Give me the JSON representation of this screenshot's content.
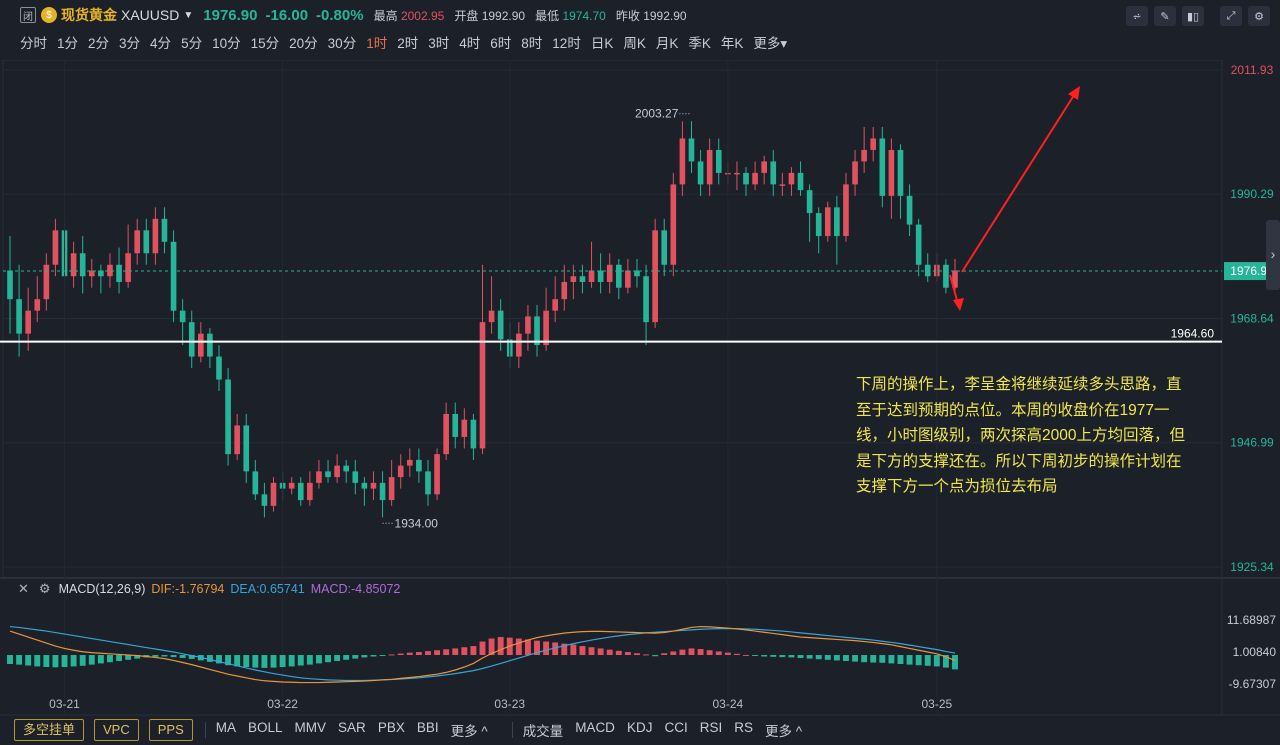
{
  "header": {
    "window_icon": "闭",
    "symbol_badge_icon": "coin-icon",
    "symbol_name": "现货黄金",
    "symbol_code": "XAUUSD",
    "last_price": "1976.90",
    "change": "-16.00",
    "change_pct": "-0.80%",
    "high_label": "最高",
    "high_value": "2002.95",
    "open_label": "开盘",
    "open_value": "1992.90",
    "low_label": "最低",
    "low_value": "1974.70",
    "prev_close_label": "昨收",
    "prev_close_value": "1992.90",
    "tools": [
      "line-tool-icon",
      "pen-icon",
      "candle-style-icon",
      "fullscreen-icon",
      "settings-icon"
    ]
  },
  "periods": [
    "分时",
    "1分",
    "2分",
    "3分",
    "4分",
    "5分",
    "10分",
    "15分",
    "20分",
    "30分",
    "1时",
    "2时",
    "3时",
    "4时",
    "6时",
    "8时",
    "12时",
    "日K",
    "周K",
    "月K",
    "季K",
    "年K",
    "更多▾"
  ],
  "active_period": "1时",
  "chart_data": {
    "type": "candlestick",
    "price_axis": {
      "ticks": [
        "2011.93",
        "1990.29",
        "1968.64",
        "1946.99",
        "1925.34"
      ],
      "min": 1925.34,
      "max": 2011.93
    },
    "current_price_label": "1976.90",
    "horizontal_line": {
      "value": 1964.6,
      "label": "1964.60"
    },
    "annotations": {
      "high": "2003.27",
      "low": "1934.00"
    },
    "date_labels": [
      "03-21",
      "03-22",
      "03-23",
      "03-24",
      "03-25"
    ],
    "candles": [
      [
        1977,
        1972,
        1983,
        1966
      ],
      [
        1972,
        1966,
        1978,
        1962
      ],
      [
        1966,
        1970,
        1974,
        1963
      ],
      [
        1970,
        1972,
        1976,
        1968
      ],
      [
        1972,
        1978,
        1980,
        1970
      ],
      [
        1978,
        1984,
        1986,
        1976
      ],
      [
        1984,
        1976,
        1987,
        1974
      ],
      [
        1976,
        1980,
        1982,
        1974
      ],
      [
        1980,
        1976,
        1983,
        1973
      ],
      [
        1976,
        1977,
        1979,
        1974
      ],
      [
        1977,
        1976,
        1978,
        1973
      ],
      [
        1976,
        1978,
        1980,
        1974
      ],
      [
        1978,
        1975,
        1981,
        1973
      ],
      [
        1975,
        1980,
        1985,
        1974
      ],
      [
        1980,
        1984,
        1986,
        1978
      ],
      [
        1984,
        1980,
        1986,
        1978
      ],
      [
        1980,
        1986,
        1988,
        1978
      ],
      [
        1986,
        1982,
        1988,
        1980
      ],
      [
        1982,
        1970,
        1984,
        1968
      ],
      [
        1970,
        1968,
        1972,
        1964
      ],
      [
        1968,
        1962,
        1970,
        1960
      ],
      [
        1962,
        1966,
        1968,
        1961
      ],
      [
        1966,
        1962,
        1967,
        1960
      ],
      [
        1962,
        1958,
        1964,
        1956
      ],
      [
        1958,
        1945,
        1960,
        1943
      ],
      [
        1945,
        1950,
        1952,
        1944
      ],
      [
        1950,
        1942,
        1952,
        1940
      ],
      [
        1942,
        1938,
        1944,
        1937
      ],
      [
        1938,
        1936,
        1940,
        1934
      ],
      [
        1936,
        1940,
        1941,
        1935
      ],
      [
        1940,
        1939,
        1942,
        1937
      ],
      [
        1939,
        1940,
        1941,
        1938
      ],
      [
        1940,
        1937,
        1941,
        1936
      ],
      [
        1937,
        1940,
        1942,
        1936
      ],
      [
        1940,
        1942,
        1944,
        1939
      ],
      [
        1942,
        1941,
        1944,
        1940
      ],
      [
        1941,
        1943,
        1945,
        1940
      ],
      [
        1943,
        1942,
        1944,
        1940
      ],
      [
        1942,
        1940,
        1944,
        1938
      ],
      [
        1940,
        1939,
        1941,
        1936
      ],
      [
        1939,
        1940,
        1942,
        1937
      ],
      [
        1940,
        1937,
        1942,
        1934
      ],
      [
        1937,
        1941,
        1944,
        1936
      ],
      [
        1941,
        1943,
        1945,
        1939
      ],
      [
        1943,
        1944,
        1946,
        1941
      ],
      [
        1944,
        1942,
        1946,
        1940
      ],
      [
        1942,
        1938,
        1944,
        1936
      ],
      [
        1938,
        1945,
        1946,
        1937
      ],
      [
        1945,
        1952,
        1954,
        1944
      ],
      [
        1952,
        1948,
        1954,
        1946
      ],
      [
        1948,
        1951,
        1953,
        1946
      ],
      [
        1951,
        1946,
        1952,
        1944
      ],
      [
        1946,
        1968,
        1978,
        1945
      ],
      [
        1968,
        1970,
        1976,
        1966
      ],
      [
        1970,
        1965,
        1972,
        1963
      ],
      [
        1965,
        1962,
        1968,
        1960
      ],
      [
        1962,
        1966,
        1968,
        1960
      ],
      [
        1966,
        1969,
        1971,
        1963
      ],
      [
        1969,
        1964,
        1971,
        1962
      ],
      [
        1964,
        1970,
        1974,
        1963
      ],
      [
        1970,
        1972,
        1976,
        1968
      ],
      [
        1972,
        1975,
        1978,
        1970
      ],
      [
        1975,
        1976,
        1978,
        1972
      ],
      [
        1976,
        1975,
        1978,
        1973
      ],
      [
        1975,
        1977,
        1982,
        1974
      ],
      [
        1977,
        1975,
        1980,
        1973
      ],
      [
        1975,
        1978,
        1980,
        1973
      ],
      [
        1978,
        1974,
        1979,
        1972
      ],
      [
        1974,
        1977,
        1979,
        1973
      ],
      [
        1977,
        1976,
        1979,
        1974
      ],
      [
        1976,
        1968,
        1978,
        1964
      ],
      [
        1968,
        1984,
        1986,
        1967
      ],
      [
        1984,
        1978,
        1986,
        1976
      ],
      [
        1978,
        1992,
        1994,
        1976
      ],
      [
        1992,
        2000,
        2003,
        1990
      ],
      [
        2000,
        1996,
        2003,
        1994
      ],
      [
        1996,
        1992,
        1998,
        1990
      ],
      [
        1992,
        1998,
        2000,
        1990
      ],
      [
        1998,
        1994,
        2000,
        1992
      ],
      [
        1994,
        1994,
        1996,
        1992
      ],
      [
        1994,
        1994,
        1996,
        1991
      ],
      [
        1994,
        1992,
        1995,
        1990
      ],
      [
        1992,
        1994,
        1996,
        1991
      ],
      [
        1994,
        1996,
        1997,
        1992
      ],
      [
        1996,
        1992,
        1998,
        1990
      ],
      [
        1992,
        1992,
        1994,
        1990
      ],
      [
        1992,
        1994,
        1995,
        1990
      ],
      [
        1994,
        1991,
        1996,
        1990
      ],
      [
        1991,
        1987,
        1992,
        1982
      ],
      [
        1987,
        1983,
        1988,
        1980
      ],
      [
        1983,
        1988,
        1989,
        1982
      ],
      [
        1988,
        1983,
        1990,
        1978
      ],
      [
        1983,
        1992,
        1994,
        1982
      ],
      [
        1992,
        1996,
        1998,
        1990
      ],
      [
        1996,
        1998,
        2002,
        1994
      ],
      [
        1998,
        2000,
        2002,
        1996
      ],
      [
        2000,
        1990,
        2002,
        1988
      ],
      [
        1990,
        1998,
        2000,
        1986
      ],
      [
        1998,
        1990,
        1999,
        1986
      ],
      [
        1990,
        1985,
        1992,
        1983
      ],
      [
        1985,
        1978,
        1986,
        1976
      ],
      [
        1978,
        1976,
        1980,
        1975
      ],
      [
        1976,
        1978,
        1980,
        1975
      ],
      [
        1978,
        1974,
        1979,
        1973
      ],
      [
        1974,
        1977,
        1979,
        1973
      ]
    ],
    "macd": {
      "title": "MACD(12,26,9)",
      "dif_label": "DIF:-1.76794",
      "dea_label": "DEA:0.65741",
      "macd_label": "MACD:-4.85072",
      "axis_ticks": [
        "11.68987",
        "1.00840",
        "-9.67307"
      ],
      "axis_min": -9.67307,
      "axis_max": 11.68987,
      "histogram": [
        -3.0,
        -3.2,
        -3.5,
        -3.8,
        -4.0,
        -4.1,
        -4.0,
        -3.8,
        -3.6,
        -3.2,
        -2.8,
        -2.4,
        -2.0,
        -1.6,
        -1.2,
        -0.8,
        -0.6,
        -0.5,
        -0.7,
        -1.0,
        -1.3,
        -1.8,
        -2.3,
        -2.8,
        -3.4,
        -3.8,
        -4.0,
        -4.2,
        -4.3,
        -4.2,
        -4.0,
        -3.8,
        -3.5,
        -3.2,
        -2.8,
        -2.4,
        -2.0,
        -1.6,
        -1.2,
        -0.8,
        -0.5,
        -0.2,
        0.2,
        0.5,
        0.8,
        1.0,
        1.3,
        1.6,
        1.9,
        2.2,
        2.6,
        3.0,
        4.5,
        5.5,
        6.0,
        5.8,
        5.5,
        5.2,
        4.8,
        4.5,
        4.2,
        3.8,
        3.5,
        3.0,
        2.6,
        2.2,
        1.8,
        1.4,
        1.0,
        0.6,
        0.2,
        -0.4,
        0.6,
        1.2,
        1.8,
        2.2,
        2.0,
        1.6,
        1.2,
        0.8,
        0.4,
        0.0,
        -0.3,
        -0.5,
        -0.6,
        -0.7,
        -0.8,
        -1.0,
        -1.2,
        -1.4,
        -1.6,
        -1.8,
        -2.0,
        -2.2,
        -2.4,
        -2.5,
        -2.6,
        -2.8,
        -3.0,
        -3.2,
        -3.4,
        -3.6,
        -3.8,
        -4.2,
        -4.8
      ],
      "dif": [
        8.0,
        7.0,
        6.0,
        5.0,
        4.0,
        3.0,
        2.2,
        1.6,
        1.1,
        0.8,
        0.6,
        0.4,
        0.2,
        0.0,
        -0.2,
        -0.5,
        -0.8,
        -1.2,
        -1.8,
        -2.5,
        -3.2,
        -4.0,
        -4.8,
        -5.6,
        -6.4,
        -7.0,
        -7.6,
        -8.2,
        -8.6,
        -8.8,
        -9.0,
        -9.1,
        -9.2,
        -9.2,
        -9.2,
        -9.1,
        -9.0,
        -8.9,
        -8.8,
        -8.7,
        -8.5,
        -8.3,
        -8.1,
        -7.8,
        -7.5,
        -7.2,
        -6.8,
        -6.4,
        -5.8,
        -5.0,
        -4.0,
        -2.8,
        -1.0,
        0.5,
        1.8,
        3.0,
        4.0,
        5.0,
        5.8,
        6.4,
        6.9,
        7.3,
        7.6,
        7.8,
        7.9,
        7.9,
        7.8,
        7.7,
        7.6,
        7.5,
        7.4,
        7.3,
        7.5,
        8.0,
        8.6,
        9.2,
        9.5,
        9.4,
        9.2,
        9.0,
        8.7,
        8.4,
        8.0,
        7.6,
        7.2,
        6.8,
        6.4,
        6.0,
        5.8,
        5.6,
        5.4,
        5.2,
        5.0,
        4.8,
        4.5,
        4.2,
        3.8,
        3.4,
        2.8,
        2.2,
        1.6,
        1.0,
        0.4,
        -0.6,
        -1.8
      ],
      "dea": [
        9.5,
        9.2,
        8.8,
        8.4,
        8.0,
        7.5,
        7.0,
        6.5,
        6.0,
        5.5,
        5.0,
        4.5,
        4.0,
        3.5,
        3.0,
        2.5,
        2.0,
        1.5,
        1.0,
        0.4,
        -0.2,
        -0.8,
        -1.5,
        -2.2,
        -2.9,
        -3.6,
        -4.3,
        -5.0,
        -5.6,
        -6.2,
        -6.7,
        -7.2,
        -7.6,
        -7.9,
        -8.1,
        -8.3,
        -8.4,
        -8.5,
        -8.5,
        -8.5,
        -8.4,
        -8.3,
        -8.2,
        -8.0,
        -7.8,
        -7.6,
        -7.3,
        -7.0,
        -6.6,
        -6.2,
        -5.7,
        -5.2,
        -4.5,
        -3.7,
        -2.8,
        -1.9,
        -1.0,
        -0.1,
        0.8,
        1.6,
        2.4,
        3.1,
        3.8,
        4.4,
        5.0,
        5.5,
        6.0,
        6.4,
        6.8,
        7.1,
        7.4,
        7.6,
        7.8,
        8.0,
        8.2,
        8.4,
        8.6,
        8.7,
        8.8,
        8.8,
        8.8,
        8.7,
        8.6,
        8.4,
        8.2,
        8.0,
        7.7,
        7.4,
        7.1,
        6.8,
        6.5,
        6.2,
        5.9,
        5.6,
        5.3,
        5.0,
        4.6,
        4.2,
        3.8,
        3.3,
        2.8,
        2.3,
        1.8,
        1.2,
        0.66
      ]
    }
  },
  "annotation_text": "下周的操作上，李呈金将继续延续多头思路，直至于达到预期的点位。本周的收盘价在1977一线，小时图级别，两次探高2000上方均回落，但是下方的支撑还在。所以下周初步的操作计划在支撑下方一个点为损位去布局",
  "bottom": {
    "order_buttons": [
      "多空挂单",
      "VPC",
      "PPS"
    ],
    "main_indicators": [
      "MA",
      "BOLL",
      "MMV",
      "SAR",
      "PBX",
      "BBI",
      "更多 ^"
    ],
    "sub_indicators": [
      "成交量",
      "MACD",
      "KDJ",
      "CCI",
      "RSI",
      "RS",
      "更多 ^"
    ]
  },
  "colors": {
    "up": "#e05260",
    "down": "#27b59a",
    "bg": "#1b2029",
    "accent": "#e6b422",
    "annotation": "#f2e84b",
    "arrow": "#ff2020"
  }
}
